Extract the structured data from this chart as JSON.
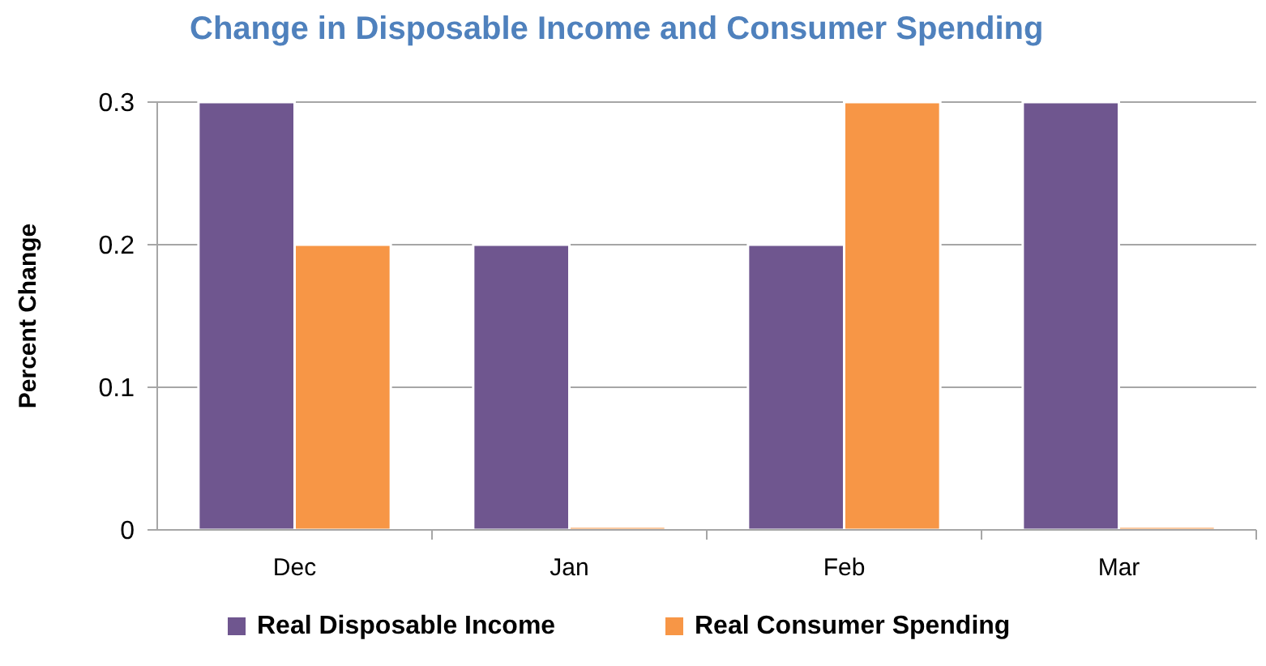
{
  "chart_data": {
    "type": "bar",
    "title": "Change in Disposable Income and Consumer Spending",
    "ylabel": "Percent Change",
    "categories": [
      "Dec",
      "Jan",
      "Feb",
      "Mar"
    ],
    "series": [
      {
        "name": "Real Disposable Income",
        "color": "#6f568f",
        "values": [
          0.3,
          0.2,
          0.2,
          0.3
        ]
      },
      {
        "name": "Real Consumer Spending",
        "color": "#f79646",
        "values": [
          0.2,
          0,
          0.3,
          0
        ]
      }
    ],
    "ylim": [
      0,
      0.3
    ],
    "yticks": [
      0,
      0.1,
      0.2,
      0.3
    ],
    "grid": "y",
    "legend": "bottom"
  }
}
